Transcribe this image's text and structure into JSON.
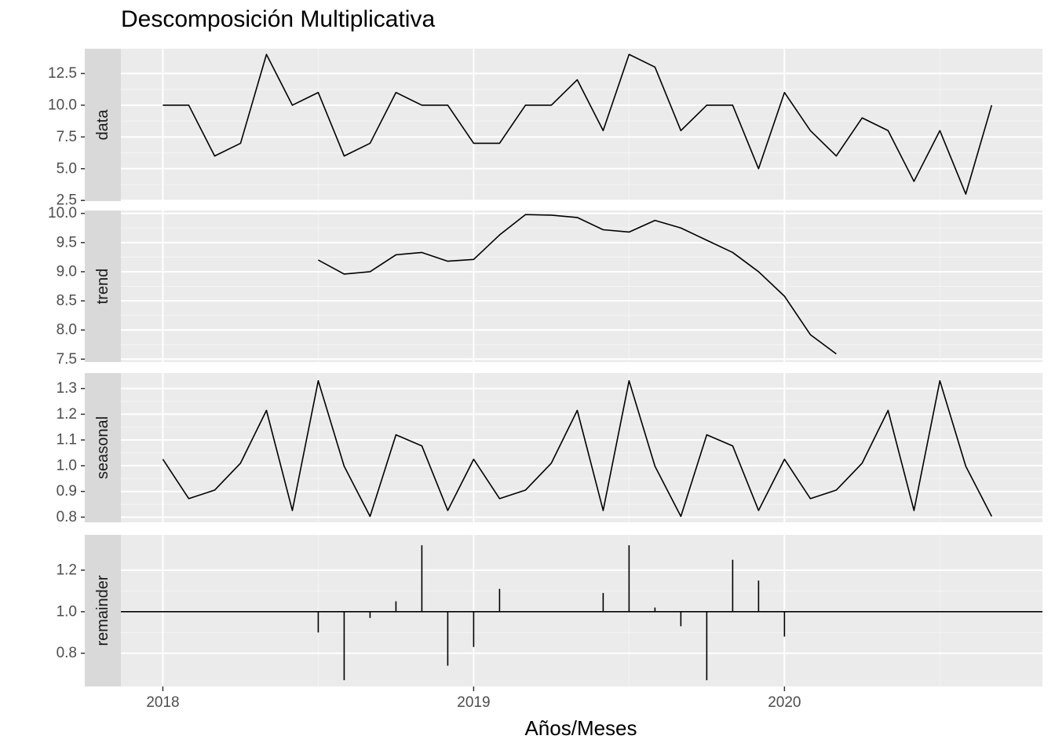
{
  "chart_data": {
    "type": "line",
    "title": "Descomposición Multiplicativa",
    "xlabel": "Años/Meses",
    "xlim": [
      2017.865,
      2020.83
    ],
    "xticks": [
      2018,
      2019,
      2020
    ],
    "x_start": 2018,
    "x_step": 0.0833333,
    "grid": true,
    "panels": [
      {
        "name": "data",
        "ylim": [
          2.45,
          14.45
        ],
        "yticks": [
          2.5,
          5.0,
          7.5,
          10.0,
          12.5
        ],
        "ytick_labels": [
          "2.5",
          "5.0",
          "7.5",
          "10.0",
          "12.5"
        ],
        "style": "line",
        "values": [
          10,
          10,
          6,
          7,
          14,
          10,
          11,
          6,
          7,
          11,
          10,
          10,
          7,
          7,
          10,
          10,
          12,
          8,
          14,
          13,
          8,
          10,
          10,
          5,
          11,
          8,
          6,
          9,
          8,
          4,
          8,
          3,
          10
        ]
      },
      {
        "name": "trend",
        "ylim": [
          7.45,
          10.05
        ],
        "yticks": [
          7.5,
          8.0,
          8.5,
          9.0,
          9.5,
          10.0
        ],
        "ytick_labels": [
          "7.5",
          "8.0",
          "8.5",
          "9.0",
          "9.5",
          "10.0"
        ],
        "style": "line",
        "values": [
          null,
          null,
          null,
          null,
          null,
          null,
          9.2,
          8.96,
          9.0,
          9.29,
          9.33,
          9.18,
          9.21,
          9.63,
          9.98,
          9.97,
          9.93,
          9.72,
          9.68,
          9.88,
          9.75,
          9.54,
          9.33,
          9.0,
          8.58,
          7.92,
          7.59,
          null,
          null,
          null,
          null,
          null,
          null
        ]
      },
      {
        "name": "seasonal",
        "ylim": [
          0.78,
          1.36
        ],
        "yticks": [
          0.8,
          0.9,
          1.0,
          1.1,
          1.2,
          1.3
        ],
        "ytick_labels": [
          "0.8",
          "0.9",
          "1.0",
          "1.1",
          "1.2",
          "1.3"
        ],
        "style": "line",
        "values": [
          1.025,
          0.872,
          0.905,
          1.01,
          1.215,
          0.826,
          1.33,
          0.998,
          0.803,
          1.12,
          1.077,
          0.826,
          1.025,
          0.872,
          0.905,
          1.01,
          1.215,
          0.826,
          1.33,
          0.998,
          0.803,
          1.12,
          1.077,
          0.826,
          1.025,
          0.872,
          0.905,
          1.01,
          1.215,
          0.826,
          1.33,
          0.998,
          0.803
        ]
      },
      {
        "name": "remainder",
        "ylim": [
          0.64,
          1.37
        ],
        "yticks": [
          0.8,
          1.0,
          1.2
        ],
        "ytick_labels": [
          "0.8",
          "1.0",
          "1.2"
        ],
        "style": "bars",
        "baseline": 1.0,
        "values": [
          null,
          null,
          null,
          null,
          null,
          null,
          0.9,
          0.67,
          0.97,
          1.05,
          1.32,
          0.74,
          0.83,
          1.11,
          null,
          null,
          null,
          1.09,
          1.32,
          1.02,
          0.93,
          0.67,
          1.25,
          1.15,
          0.88,
          null,
          null,
          null,
          null,
          null,
          null,
          null,
          null
        ]
      }
    ]
  }
}
